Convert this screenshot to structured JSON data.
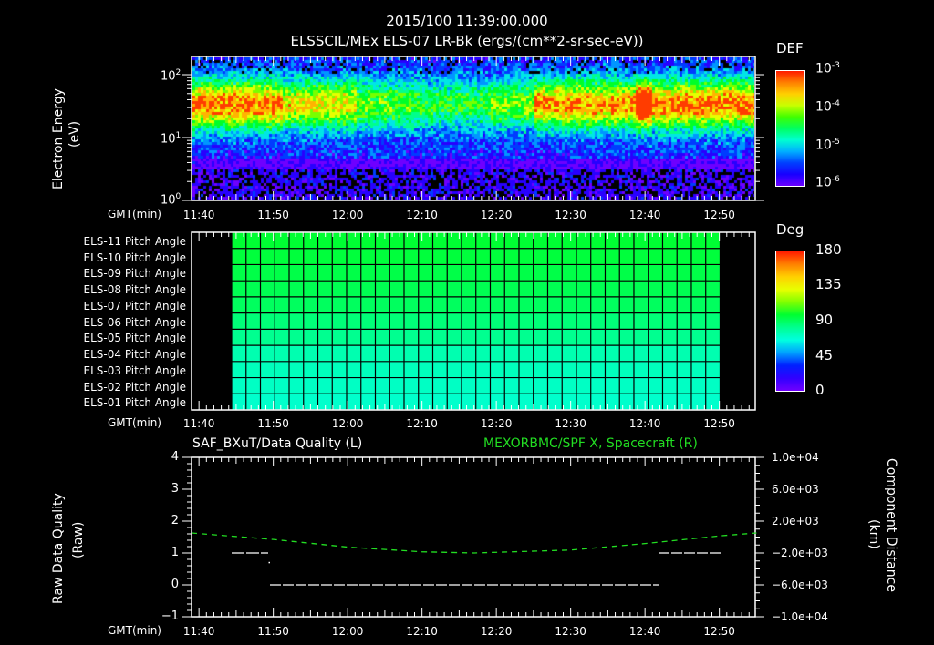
{
  "header": {
    "timestamp": "2015/100 11:39:00.000",
    "subtitle": "ELSSCIL/MEx ELS-07 LR-Bk  (ergs/(cm**2-sr-sec-eV))"
  },
  "time_axis": {
    "label": "GMT(min)",
    "ticks": [
      "11:40",
      "11:50",
      "12:00",
      "12:10",
      "12:20",
      "12:30",
      "12:40",
      "12:50"
    ]
  },
  "panel1": {
    "ylabel": "Electron Energy",
    "yunit": "(eV)",
    "yticks": [
      {
        "base": "10",
        "exp": "2"
      },
      {
        "base": "10",
        "exp": "1"
      },
      {
        "base": "10",
        "exp": "0"
      }
    ],
    "colorbar": {
      "title": "DEF",
      "ticks": [
        {
          "base": "10",
          "exp": "-3"
        },
        {
          "base": "10",
          "exp": "-4"
        },
        {
          "base": "10",
          "exp": "-5"
        },
        {
          "base": "10",
          "exp": "-6"
        }
      ]
    }
  },
  "panel2": {
    "rows": [
      "ELS-11 Pitch Angle",
      "ELS-10 Pitch Angle",
      "ELS-09 Pitch Angle",
      "ELS-08 Pitch Angle",
      "ELS-07 Pitch Angle",
      "ELS-06 Pitch Angle",
      "ELS-05 Pitch Angle",
      "ELS-04 Pitch Angle",
      "ELS-03 Pitch Angle",
      "ELS-02 Pitch Angle",
      "ELS-01 Pitch Angle"
    ],
    "row_colors": [
      "#00ff33",
      "#00ff3c",
      "#00ff48",
      "#00ff52",
      "#00ff5e",
      "#00ff78",
      "#00ff90",
      "#00ffb0",
      "#00ffbc",
      "#00ffc4",
      "#00ffcc"
    ],
    "colorbar": {
      "title": "Deg",
      "ticks": [
        "180",
        "135",
        "90",
        "45",
        "0"
      ]
    }
  },
  "panel3": {
    "left_title": "SAF_BXuT/Data Quality (L)",
    "right_title": "MEXORBMC/SPF X, Spacecraft (R)",
    "right_title_color": "#22dd22",
    "ylabel": "Raw Data Quality",
    "yunit": "(Raw)",
    "yticks_left": [
      "4",
      "3",
      "2",
      "1",
      "0",
      "−1"
    ],
    "yticks_right": [
      "1.0e+04",
      "6.0e+03",
      "2.0e+03",
      "−2.0e+03",
      "−6.0e+03",
      "−1.0e+04"
    ],
    "ylabel_right": "Component Distance",
    "yunit_right": "(km)"
  },
  "chart_data": [
    {
      "type": "heatmap",
      "title": "ELSSCIL/MEx ELS-07 LR-Bk (ergs/(cm**2-sr-sec-eV))",
      "xlabel": "GMT(min)",
      "ylabel": "Electron Energy (eV)",
      "x_range": [
        "11:39",
        "12:55"
      ],
      "y_range": [
        1,
        150
      ],
      "y_scale": "log",
      "colorbar": {
        "label": "DEF",
        "range": [
          1e-06,
          0.001
        ],
        "scale": "log"
      },
      "description": "Peak flux ~1e-4 between 15-40 eV; enhanced bursts near 12:30-12:40 with peak near 10^-3.5 at ~12:40"
    },
    {
      "type": "heatmap",
      "title": "ELS Pitch Angle",
      "categories": [
        "ELS-01",
        "ELS-02",
        "ELS-03",
        "ELS-04",
        "ELS-05",
        "ELS-06",
        "ELS-07",
        "ELS-08",
        "ELS-09",
        "ELS-10",
        "ELS-11"
      ],
      "values_deg": [
        70,
        71,
        72,
        73,
        76,
        79,
        83,
        85,
        87,
        88,
        90
      ],
      "x_range": [
        "11:44.5",
        "12:50"
      ],
      "colorbar": {
        "label": "Deg",
        "range": [
          0,
          180
        ]
      }
    },
    {
      "type": "line",
      "xlabel": "GMT(min)",
      "series": [
        {
          "name": "SAF_BXuT/Data Quality (L)",
          "axis": "left",
          "segments": [
            {
              "x": [
                "11:44.5",
                "11:49.5"
              ],
              "y": 1
            },
            {
              "x": [
                "11:50",
                "12:42"
              ],
              "y": 0
            },
            {
              "x": [
                "12:42",
                "12:50"
              ],
              "y": 1
            }
          ]
        },
        {
          "name": "MEXORBMC/SPF X, Spacecraft (R)",
          "axis": "right",
          "x": [
            "11:39",
            "11:50",
            "12:00",
            "12:10",
            "12:17",
            "12:30",
            "12:40",
            "12:50",
            "12:55"
          ],
          "y": [
            0,
            -1100,
            -2400,
            -3200,
            -3400,
            -2900,
            -1800,
            -500,
            0
          ]
        }
      ],
      "ylim_left": [
        -1,
        4
      ],
      "ylim_right": [
        -10000,
        10000
      ]
    }
  ]
}
